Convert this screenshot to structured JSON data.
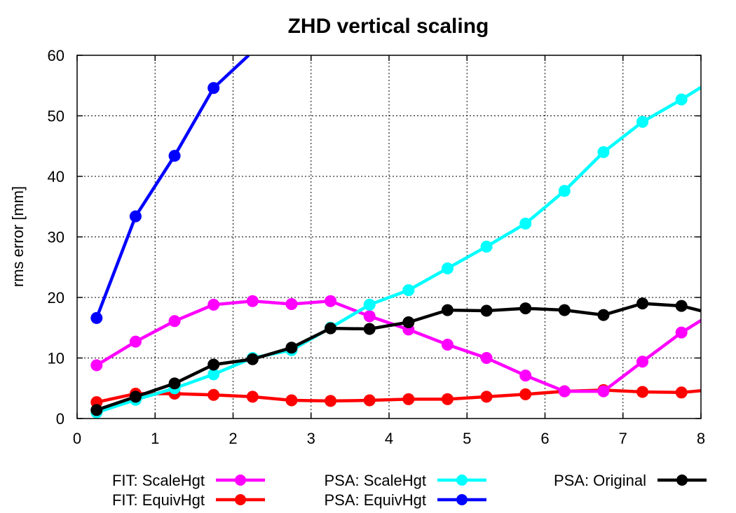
{
  "chart_data": {
    "type": "line",
    "title": "ZHD vertical scaling",
    "xlabel": "",
    "ylabel": "rms error [mm]",
    "xlim": [
      0,
      8
    ],
    "ylim": [
      0,
      60
    ],
    "xticks": [
      0,
      1,
      2,
      3,
      4,
      5,
      6,
      7,
      8
    ],
    "yticks": [
      0,
      10,
      20,
      30,
      40,
      50,
      60
    ],
    "grid": true,
    "legend_position": "bottom",
    "series": [
      {
        "name": "FIT: ScaleHgt",
        "color": "#ff00ff",
        "x": [
          0.25,
          0.75,
          1.25,
          1.75,
          2.25,
          2.75,
          3.25,
          3.75,
          4.25,
          4.75,
          5.25,
          5.75,
          6.25,
          6.75,
          7.25,
          7.75,
          8.0
        ],
        "y": [
          8.8,
          12.7,
          16.1,
          18.8,
          19.4,
          18.9,
          19.4,
          16.9,
          14.7,
          12.2,
          10.0,
          7.1,
          4.5,
          4.5,
          9.4,
          14.2,
          16.2
        ]
      },
      {
        "name": "FIT: EquivHgt",
        "color": "#ff0000",
        "x": [
          0.25,
          0.75,
          1.25,
          1.75,
          2.25,
          2.75,
          3.25,
          3.75,
          4.25,
          4.75,
          5.25,
          5.75,
          6.25,
          6.75,
          7.25,
          7.75,
          8.0
        ],
        "y": [
          2.7,
          4.1,
          4.1,
          3.9,
          3.6,
          3.0,
          2.9,
          3.0,
          3.2,
          3.2,
          3.6,
          4.0,
          4.5,
          4.7,
          4.4,
          4.3,
          4.6
        ]
      },
      {
        "name": "PSA: ScaleHgt",
        "color": "#00ffff",
        "x": [
          0.25,
          0.75,
          1.25,
          1.75,
          2.25,
          2.75,
          3.25,
          3.75,
          4.25,
          4.75,
          5.25,
          5.75,
          6.25,
          6.75,
          7.25,
          7.75,
          8.0
        ],
        "y": [
          1.0,
          3.1,
          5.0,
          7.3,
          10.0,
          11.3,
          15.0,
          18.8,
          21.2,
          24.8,
          28.4,
          32.2,
          37.6,
          44.0,
          49.0,
          52.7,
          54.7
        ]
      },
      {
        "name": "PSA: EquivHgt",
        "color": "#0000ff",
        "x": [
          0.25,
          0.75,
          1.25,
          1.75,
          2.2
        ],
        "y": [
          16.6,
          33.4,
          43.4,
          54.6,
          60.0
        ]
      },
      {
        "name": "PSA: Original",
        "color": "#000000",
        "x": [
          0.25,
          0.75,
          1.25,
          1.75,
          2.25,
          2.75,
          3.25,
          3.75,
          4.25,
          4.75,
          5.25,
          5.75,
          6.25,
          6.75,
          7.25,
          7.75,
          8.0
        ],
        "y": [
          1.4,
          3.6,
          5.8,
          8.9,
          9.8,
          11.7,
          14.9,
          14.8,
          15.9,
          17.9,
          17.8,
          18.2,
          17.9,
          17.1,
          19.0,
          18.6,
          17.8
        ]
      }
    ],
    "marker_x_max": 7.8
  }
}
